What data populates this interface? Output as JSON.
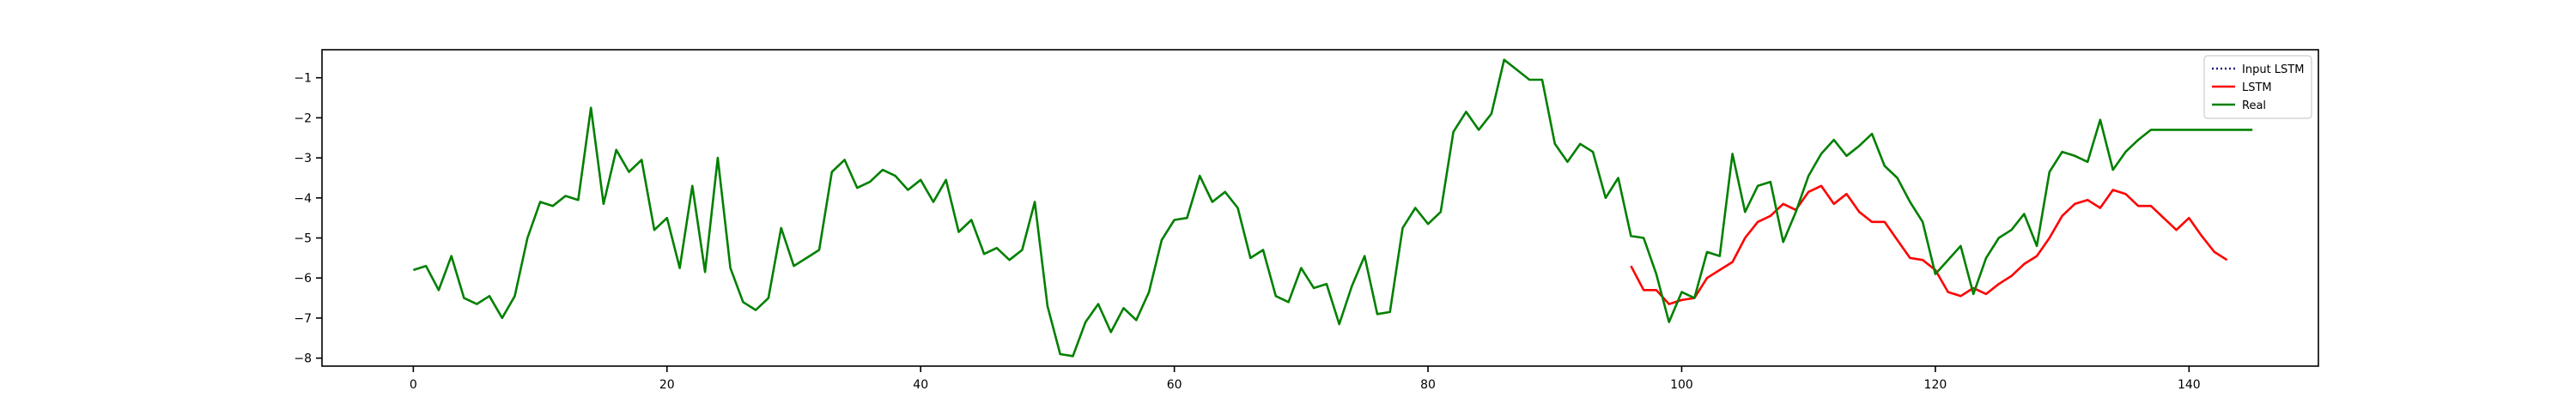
{
  "chart_data": {
    "type": "line",
    "title": "",
    "xlabel": "",
    "ylabel": "",
    "xlim": [
      -7.2,
      150.2
    ],
    "ylim": [
      -8.2,
      -0.3
    ],
    "xticks": [
      0,
      20,
      40,
      60,
      80,
      100,
      120,
      140
    ],
    "yticks": [
      -8,
      -7,
      -6,
      -5,
      -4,
      -3,
      -2,
      -1
    ],
    "grid": false,
    "legend_position": "upper-right",
    "series": [
      {
        "name": "Input LSTM",
        "color": "#1f1f7a",
        "style": "dotted",
        "x_start": 0,
        "values": []
      },
      {
        "name": "LSTM",
        "color": "#ff0000",
        "style": "solid",
        "x_start": 96,
        "values": [
          -5.7,
          -6.3,
          -6.3,
          -6.65,
          -6.55,
          -6.5,
          -6.0,
          -5.8,
          -5.6,
          -5.0,
          -4.6,
          -4.45,
          -4.15,
          -4.3,
          -3.85,
          -3.7,
          -4.15,
          -3.9,
          -4.35,
          -4.6,
          -4.6,
          -5.05,
          -5.5,
          -5.55,
          -5.8,
          -6.35,
          -6.45,
          -6.25,
          -6.4,
          -6.15,
          -5.95,
          -5.65,
          -5.45,
          -5.0,
          -4.45,
          -4.15,
          -4.05,
          -4.25,
          -3.8,
          -3.9,
          -4.2,
          -4.2,
          -4.5,
          -4.8,
          -4.5,
          -4.95,
          -5.35,
          -5.55
        ]
      },
      {
        "name": "Real",
        "color": "#008000",
        "style": "solid",
        "x_start": 0,
        "values": [
          -5.8,
          -5.7,
          -6.3,
          -5.45,
          -6.5,
          -6.65,
          -6.45,
          -7.0,
          -6.45,
          -5.0,
          -4.1,
          -4.2,
          -3.95,
          -4.05,
          -1.75,
          -4.15,
          -2.8,
          -3.35,
          -3.05,
          -4.8,
          -4.5,
          -5.75,
          -3.7,
          -5.85,
          -3.0,
          -5.75,
          -6.6,
          -6.8,
          -6.5,
          -4.75,
          -5.7,
          -5.5,
          -5.3,
          -3.35,
          -3.05,
          -3.75,
          -3.6,
          -3.3,
          -3.45,
          -3.8,
          -3.55,
          -4.1,
          -3.55,
          -4.85,
          -4.55,
          -5.4,
          -5.25,
          -5.55,
          -5.3,
          -4.1,
          -6.7,
          -7.9,
          -7.95,
          -7.1,
          -6.65,
          -7.35,
          -6.75,
          -7.05,
          -6.35,
          -5.05,
          -4.55,
          -4.5,
          -3.45,
          -4.1,
          -3.85,
          -4.25,
          -5.5,
          -5.3,
          -6.45,
          -6.6,
          -5.75,
          -6.25,
          -6.15,
          -7.15,
          -6.2,
          -5.45,
          -6.9,
          -6.85,
          -4.75,
          -4.25,
          -4.65,
          -4.35,
          -2.35,
          -1.85,
          -2.3,
          -1.9,
          -0.55,
          -0.8,
          -1.05,
          -1.05,
          -2.65,
          -3.1,
          -2.65,
          -2.85,
          -4.0,
          -3.5,
          -4.95,
          -5.0,
          -5.9,
          -7.1,
          -6.35,
          -6.5,
          -5.35,
          -5.45,
          -2.9,
          -4.35,
          -3.7,
          -3.6,
          -5.1,
          -4.35,
          -3.45,
          -2.9,
          -2.55,
          -2.95,
          -2.7,
          -2.4,
          -3.2,
          -3.5,
          -4.1,
          -4.6,
          -5.9,
          -5.55,
          -5.2,
          -6.4,
          -5.5,
          -5.0,
          -4.8,
          -4.4,
          -5.2,
          -3.35,
          -2.85,
          -2.95,
          -3.1,
          -2.05,
          -3.3,
          -2.85,
          -2.55,
          -2.3,
          -2.3,
          -2.3,
          -2.3,
          -2.3,
          -2.3,
          -2.3,
          -2.3,
          -2.3
        ]
      }
    ]
  }
}
